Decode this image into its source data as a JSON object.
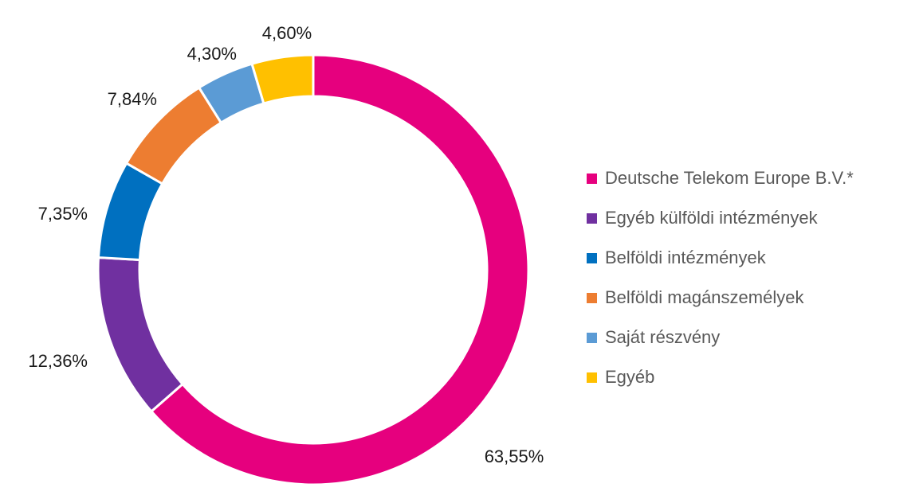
{
  "chart_data": {
    "type": "pie",
    "variant": "donut",
    "series": [
      {
        "name": "Deutsche Telekom Europe B.V.*",
        "value": 63.55,
        "label": "63,55%",
        "color": "#E6007E"
      },
      {
        "name": "Egyéb külföldi intézmények",
        "value": 12.36,
        "label": "12,36%",
        "color": "#7030A0"
      },
      {
        "name": "Belföldi intézmények",
        "value": 7.35,
        "label": "7,35%",
        "color": "#0070C0"
      },
      {
        "name": "Belföldi magánszemélyek",
        "value": 7.84,
        "label": "7,84%",
        "color": "#ED7D31"
      },
      {
        "name": "Saját részvény",
        "value": 4.3,
        "label": "4,30%",
        "color": "#5B9BD5"
      },
      {
        "name": "Egyéb",
        "value": 4.6,
        "label": "4,60%",
        "color": "#FFC000"
      }
    ],
    "legend_position": "right",
    "direction": "clockwise",
    "start": "top"
  }
}
